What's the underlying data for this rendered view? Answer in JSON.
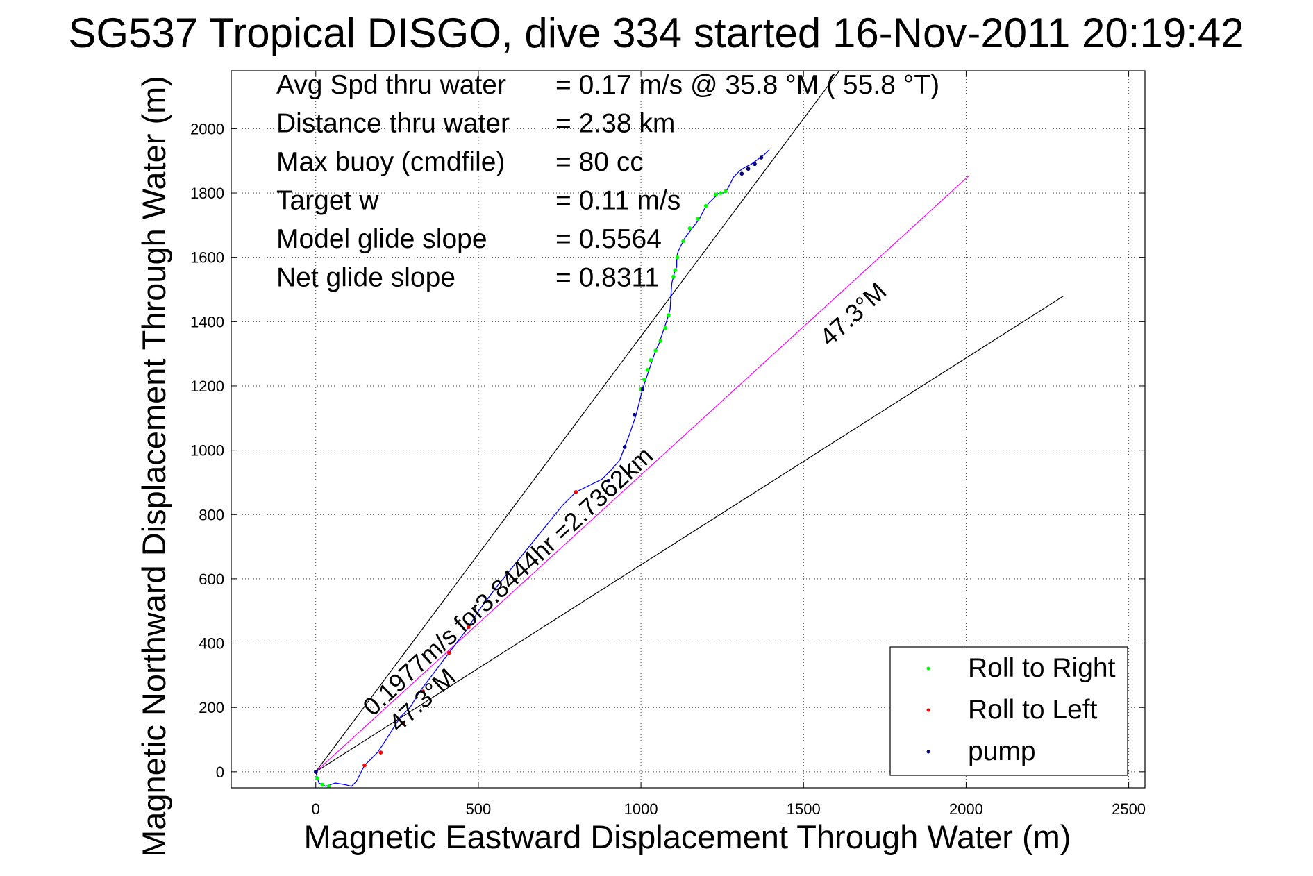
{
  "chart_data": {
    "type": "line",
    "title": "SG537 Tropical DISGO, dive 334 started 16-Nov-2011 20:19:42",
    "xlabel": "Magnetic Eastward Displacement Through Water (m)",
    "ylabel": "Magnetic Northward Displacement Through Water (m)",
    "xlim": [
      -260,
      2550
    ],
    "ylim": [
      -50,
      2180
    ],
    "xticks": [
      0,
      500,
      1000,
      1500,
      2000,
      2500
    ],
    "yticks": [
      0,
      200,
      400,
      600,
      800,
      1000,
      1200,
      1400,
      1600,
      1800,
      2000
    ],
    "grid": true,
    "stats": [
      {
        "label": "Avg Spd thru water",
        "value": "=  0.17 m/s @  35.8 °M ( 55.8 °T)"
      },
      {
        "label": "Distance thru water",
        "value": "=  2.38 km"
      },
      {
        "label": "Max buoy (cmdfile)",
        "value": "= 80 cc"
      },
      {
        "label": "Target w",
        "value": "= 0.11 m/s"
      },
      {
        "label": "Model glide slope",
        "value": "= 0.5564"
      },
      {
        "label": "Net glide slope",
        "value": "= 0.8311"
      }
    ],
    "guide_lines": [
      {
        "x": [
          0,
          1610
        ],
        "y": [
          0,
          2180
        ],
        "color": "#000000"
      },
      {
        "x": [
          0,
          2010
        ],
        "y": [
          0,
          1855
        ],
        "color": "#ff00ff"
      },
      {
        "x": [
          0,
          2300
        ],
        "y": [
          0,
          1480
        ],
        "color": "#000000"
      }
    ],
    "annotations": [
      {
        "text": "0.1977m/s for3.8444hr =2.7362km",
        "x": 175,
        "y": 170,
        "angle": 42.6
      },
      {
        "text": "47.3°M",
        "x": 255,
        "y": 120,
        "angle": 42.6
      },
      {
        "text": "47.3°M",
        "x": 1580,
        "y": 1320,
        "angle": 42.6
      }
    ],
    "series": [
      {
        "name": "track",
        "color": "#0000ff",
        "x": [
          0,
          5,
          10,
          30,
          60,
          90,
          110,
          125,
          150,
          170,
          190,
          210,
          235,
          260,
          290,
          320,
          350,
          380,
          410,
          440,
          470,
          500,
          530,
          560,
          600,
          640,
          680,
          720,
          760,
          800,
          840,
          880,
          910,
          935,
          950,
          965,
          975,
          985,
          995,
          1005,
          1015,
          1025,
          1035,
          1045,
          1055,
          1065,
          1075,
          1085,
          1090,
          1092,
          1095,
          1100,
          1105,
          1110,
          1110,
          1112,
          1115,
          1125,
          1135,
          1150,
          1165,
          1180,
          1195,
          1210,
          1225,
          1240,
          1255,
          1265,
          1285,
          1305,
          1320,
          1340,
          1360,
          1380,
          1395
        ],
        "y": [
          0,
          -20,
          -35,
          -45,
          -35,
          -40,
          -45,
          -30,
          20,
          40,
          60,
          90,
          130,
          170,
          200,
          250,
          290,
          330,
          370,
          410,
          450,
          500,
          540,
          580,
          630,
          680,
          730,
          780,
          830,
          870,
          890,
          910,
          940,
          970,
          1010,
          1050,
          1080,
          1110,
          1150,
          1190,
          1220,
          1250,
          1280,
          1310,
          1330,
          1360,
          1390,
          1420,
          1440,
          1480,
          1520,
          1540,
          1560,
          1570,
          1590,
          1610,
          1620,
          1640,
          1660,
          1680,
          1700,
          1720,
          1750,
          1770,
          1785,
          1800,
          1800,
          1810,
          1850,
          1870,
          1880,
          1890,
          1905,
          1920,
          1935
        ]
      }
    ],
    "markers": {
      "Roll to Right": {
        "color": "#00ff00",
        "x": [
          5,
          20,
          40,
          1000,
          1010,
          1020,
          1030,
          1045,
          1060,
          1075,
          1085,
          1100,
          1105,
          1112,
          1130,
          1150,
          1175,
          1200,
          1230,
          1245,
          1260
        ],
        "y": [
          -20,
          -40,
          -45,
          1190,
          1220,
          1250,
          1280,
          1310,
          1340,
          1380,
          1420,
          1540,
          1560,
          1600,
          1650,
          1690,
          1720,
          1760,
          1795,
          1800,
          1805
        ]
      },
      "Roll to Left": {
        "color": "#ff0000",
        "x": [
          150,
          200,
          270,
          330,
          410,
          470,
          800
        ],
        "y": [
          20,
          60,
          150,
          250,
          370,
          450,
          870
        ]
      },
      "pump": {
        "color": "#000080",
        "x": [
          0,
          900,
          950,
          980,
          1005,
          1310,
          1330,
          1350,
          1370
        ],
        "y": [
          0,
          905,
          1010,
          1110,
          1190,
          1860,
          1875,
          1890,
          1910
        ]
      }
    },
    "legend": {
      "position": "bottom-right",
      "entries": [
        {
          "label": "Roll to Right",
          "color": "#00ff00"
        },
        {
          "label": "Roll to Left",
          "color": "#ff0000"
        },
        {
          "label": "pump",
          "color": "#000080"
        }
      ]
    }
  }
}
